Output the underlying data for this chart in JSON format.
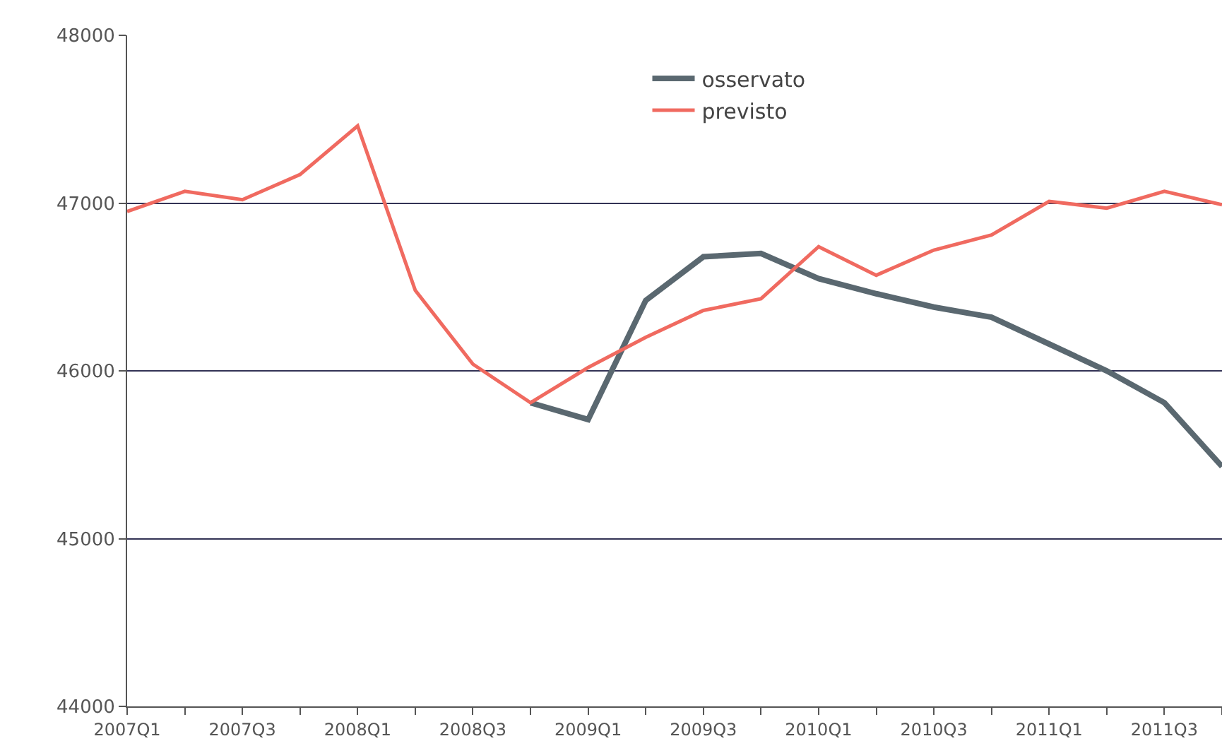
{
  "chart_data": {
    "type": "line",
    "categories": [
      "2007Q1",
      null,
      "2007Q3",
      null,
      "2008Q1",
      null,
      "2008Q3",
      null,
      "2009Q1",
      null,
      "2009Q3",
      null,
      "2010Q1",
      null,
      "2010Q3",
      null,
      "2011Q1",
      null,
      "2011Q3",
      null
    ],
    "series": [
      {
        "name": "osservato",
        "color": "#5a6870",
        "values": [
          null,
          null,
          null,
          null,
          null,
          null,
          null,
          45810,
          45710,
          46420,
          46680,
          46700,
          46550,
          46460,
          46380,
          46320,
          46160,
          46000,
          45810,
          45430
        ]
      },
      {
        "name": "previsto",
        "color": "#f06a60",
        "values": [
          46950,
          47070,
          47020,
          47170,
          47460,
          46480,
          46040,
          45810,
          46020,
          46200,
          46360,
          46430,
          46740,
          46570,
          46720,
          46810,
          47010,
          46970,
          47070,
          46990
        ]
      }
    ],
    "ylim": [
      44000,
      48000
    ],
    "yticks": [
      44000,
      45000,
      46000,
      47000,
      48000
    ],
    "grid": "y",
    "legend": "top",
    "marker": "none",
    "line_style": "solid"
  }
}
